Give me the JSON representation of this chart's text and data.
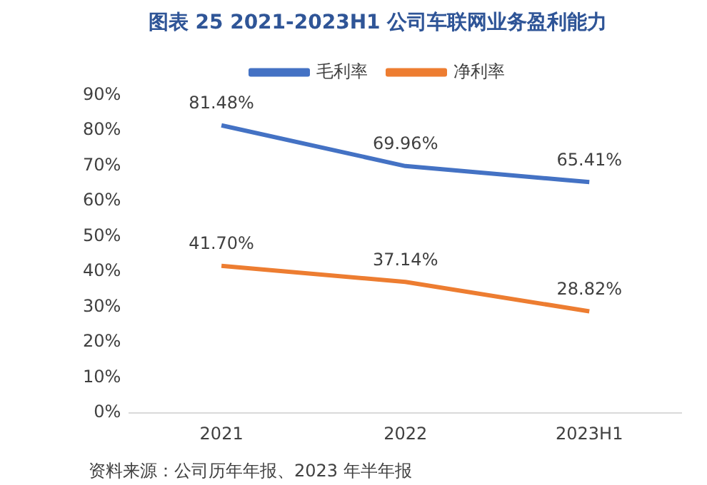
{
  "chart_data": {
    "type": "line",
    "title": "图表 25 2021-2023H1 公司车联网业务盈利能力",
    "categories": [
      "2021",
      "2022",
      "2023H1"
    ],
    "series": [
      {
        "name": "毛利率",
        "color": "#4472c4",
        "values": [
          81.48,
          69.96,
          65.41
        ],
        "value_labels": [
          "81.48%",
          "69.96%",
          "65.41%"
        ]
      },
      {
        "name": "净利率",
        "color": "#ed7d31",
        "values": [
          41.7,
          37.14,
          28.82
        ],
        "value_labels": [
          "41.70%",
          "37.14%",
          "28.82%"
        ]
      }
    ],
    "ylim": [
      0,
      90
    ],
    "yticks": [
      {
        "value": 0,
        "label": "0%"
      },
      {
        "value": 10,
        "label": "10%"
      },
      {
        "value": 20,
        "label": "20%"
      },
      {
        "value": 30,
        "label": "30%"
      },
      {
        "value": 40,
        "label": "40%"
      },
      {
        "value": 50,
        "label": "50%"
      },
      {
        "value": 60,
        "label": "60%"
      },
      {
        "value": 70,
        "label": "70%"
      },
      {
        "value": 80,
        "label": "80%"
      },
      {
        "value": 90,
        "label": "90%"
      }
    ],
    "grid": false,
    "legend": "top",
    "marker": "none",
    "line_style": "solid",
    "annotations": [
      "资料来源：公司历年年报、2023 年半年报"
    ]
  }
}
